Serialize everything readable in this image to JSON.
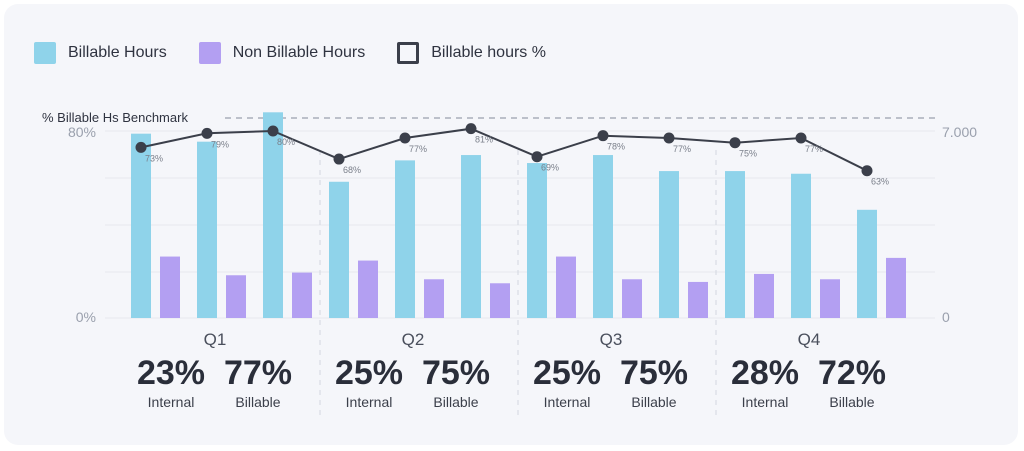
{
  "legend": [
    {
      "label": "Billable Hours",
      "color": "#8fd3ea",
      "style": "filled"
    },
    {
      "label": "Non Billable Hours",
      "color": "#b39ff2",
      "style": "filled"
    },
    {
      "label": "Billable hours %",
      "color": "#3b3f4a",
      "style": "outline"
    }
  ],
  "benchmark_label": "% Billable Hs Benchmark",
  "colors": {
    "billable": "#8fd3ea",
    "non_billable": "#b39ff2",
    "line": "#3b3f4a",
    "grid": "#e6e8ef",
    "divider": "#d3d7e0"
  },
  "chart_data": {
    "type": "bar",
    "left_axis": {
      "min_label": "0%",
      "max_label": "80%",
      "ylim": [
        0,
        80
      ]
    },
    "right_axis": {
      "min_label": "0",
      "max_label": "7.000",
      "ylim": [
        0,
        7000
      ]
    },
    "groups": [
      {
        "label": "Q1",
        "billable": [
          6900,
          6600,
          7700
        ],
        "non_billable": [
          2300,
          1600,
          1700
        ],
        "pct": [
          73,
          79,
          80
        ],
        "summary": {
          "internal_value": "23%",
          "internal_label": "Internal",
          "billable_value": "77%",
          "billable_label": "Billable"
        }
      },
      {
        "label": "Q2",
        "billable": [
          5100,
          5900,
          6100
        ],
        "non_billable": [
          2150,
          1450,
          1300
        ],
        "pct": [
          68,
          77,
          81
        ],
        "summary": {
          "internal_value": "25%",
          "internal_label": "Internal",
          "billable_value": "75%",
          "billable_label": "Billable"
        }
      },
      {
        "label": "Q3",
        "billable": [
          5800,
          6100,
          5500
        ],
        "non_billable": [
          2300,
          1450,
          1350
        ],
        "pct": [
          69,
          78,
          77
        ],
        "summary": {
          "internal_value": "25%",
          "internal_label": "Internal",
          "billable_value": "75%",
          "billable_label": "Billable"
        }
      },
      {
        "label": "Q4",
        "billable": [
          5500,
          5400,
          4050
        ],
        "non_billable": [
          1650,
          1450,
          2250
        ],
        "pct": [
          75,
          77,
          63
        ],
        "summary": {
          "internal_value": "28%",
          "internal_label": "Internal",
          "billable_value": "72%",
          "billable_label": "Billable"
        }
      }
    ]
  }
}
